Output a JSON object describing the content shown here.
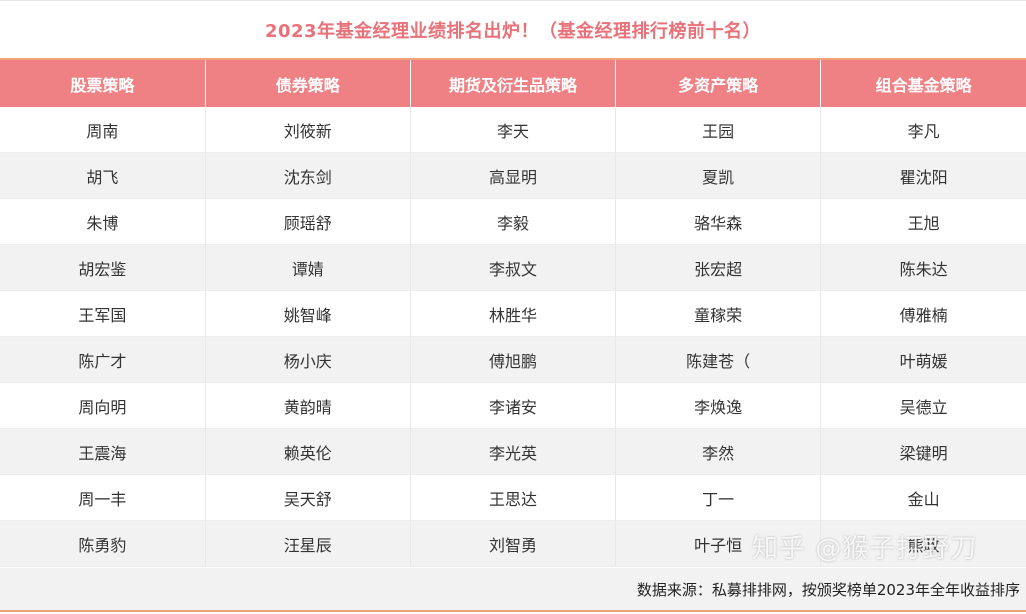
{
  "title": "2023年基金经理业绩排名出炉！（基金经理排行榜前十名）",
  "headers": [
    "股票策略",
    "债券策略",
    "期货及衍生品策略",
    "多资产策略",
    "组合基金策略"
  ],
  "rows": [
    [
      "周南",
      "刘筱新",
      "李天",
      "王园",
      "李凡"
    ],
    [
      "胡飞",
      "沈东剑",
      "高显明",
      "夏凯",
      "瞿沈阳"
    ],
    [
      "朱博",
      "顾瑶舒",
      "李毅",
      "骆华森",
      "王旭"
    ],
    [
      "胡宏鉴",
      "谭婧",
      "李叔文",
      "张宏超",
      "陈朱达"
    ],
    [
      "王军国",
      "姚智峰",
      "林胜华",
      "童稼荣",
      "傅雅楠"
    ],
    [
      "陈广才",
      "杨小庆",
      "傅旭鹏",
      "陈建苍（",
      "叶萌媛"
    ],
    [
      "周向明",
      "黄韵晴",
      "李诸安",
      "李焕逸",
      "吴德立"
    ],
    [
      "王震海",
      "赖英伦",
      "李光英",
      "李然",
      "梁键明"
    ],
    [
      "周一丰",
      "吴天舒",
      "王思达",
      "丁一",
      "金山"
    ],
    [
      "陈勇豹",
      "汪星辰",
      "刘智勇",
      "叶子恒",
      "熊政"
    ]
  ],
  "footer_note": "数据来源：私募排排网，按颁奖榜单2023年全年收益排序",
  "watermark": "知乎 @猴子打野刀",
  "colors": {
    "title_text": "#e9727a",
    "header_bg": "#ef8185",
    "stripe_bg": "#f2f2f2",
    "accent_line": "#f0a27a"
  }
}
